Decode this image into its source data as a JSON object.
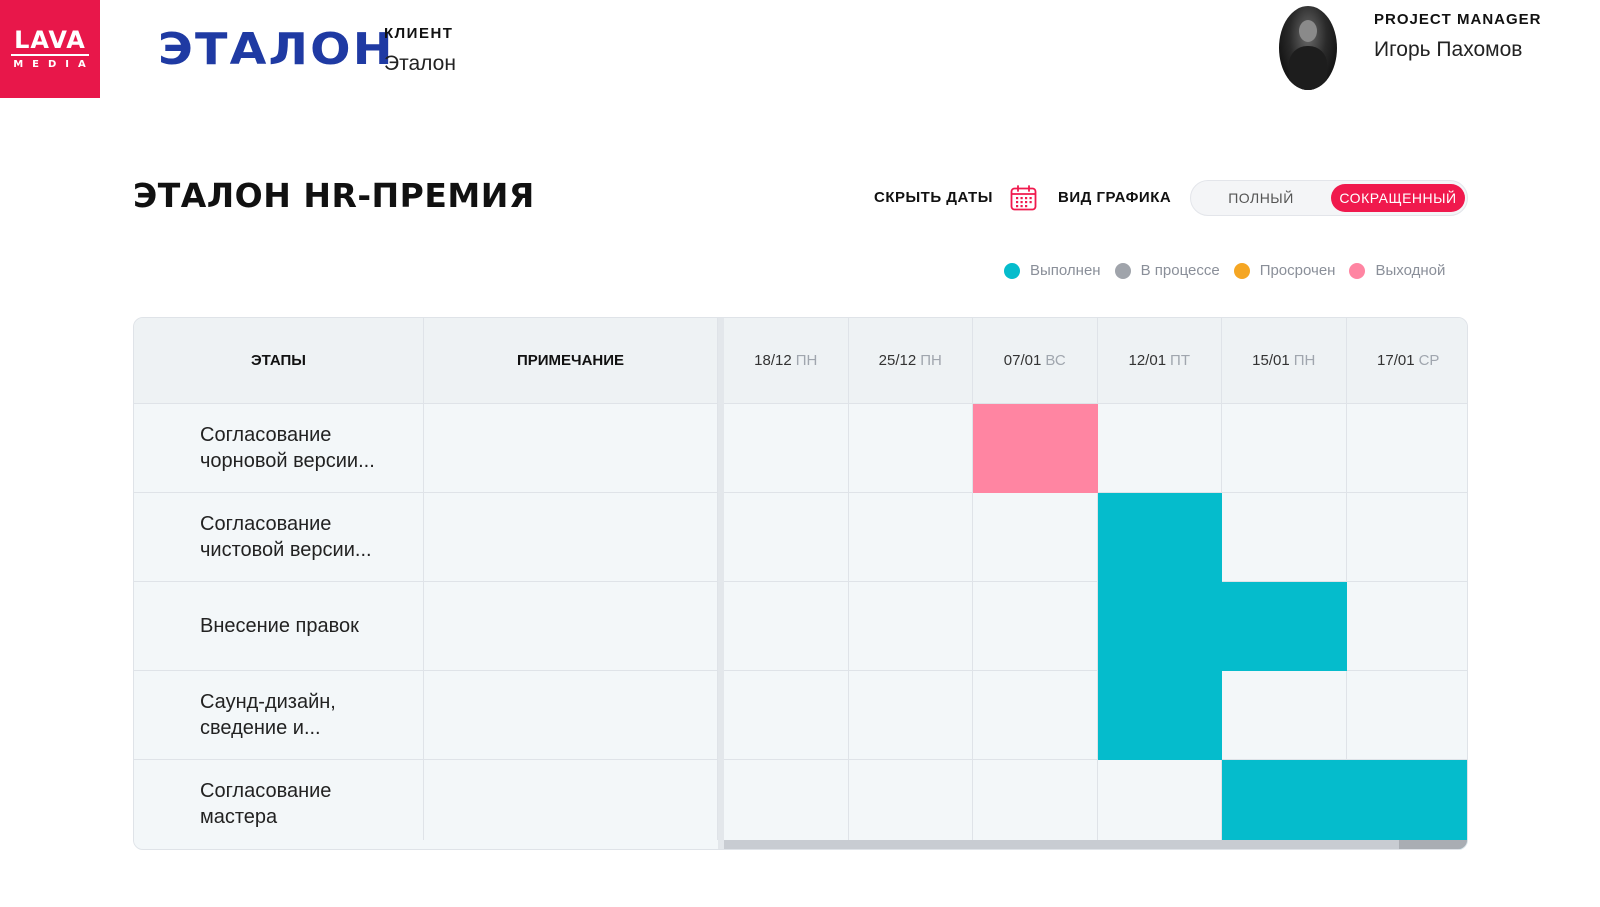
{
  "brand": {
    "line1": "LAVA",
    "line2": "MEDIA"
  },
  "client": {
    "logo_text": "ЭТАЛОН",
    "label": "КЛИЕНТ",
    "name": "Эталон"
  },
  "manager": {
    "label": "PROJECT MANAGER",
    "name": "Игорь Пахомов"
  },
  "page": {
    "title": "ЭТАЛОН HR-ПРЕМИЯ"
  },
  "controls": {
    "hide_dates": "СКРЫТЬ ДАТЫ",
    "calendar_icon": "calendar-icon",
    "view_label": "ВИД ГРАФИКА",
    "view_options": [
      "ПОЛНЫЙ",
      "СОКРАЩЕННЫЙ"
    ],
    "view_selected": "СОКРАЩЕННЫЙ"
  },
  "legend": [
    {
      "label": "Выполнен",
      "color": "#05bccc"
    },
    {
      "label": "В процессе",
      "color": "#a0a4ab"
    },
    {
      "label": "Просрочен",
      "color": "#f5a623"
    },
    {
      "label": "Выходной",
      "color": "#ff85a2"
    }
  ],
  "table": {
    "headers": {
      "stages": "ЭТАПЫ",
      "note": "ПРИМЕЧАНИЕ"
    },
    "dates": [
      {
        "date": "18/12",
        "weekday": "ПН"
      },
      {
        "date": "25/12",
        "weekday": "ПН"
      },
      {
        "date": "07/01",
        "weekday": "ВС"
      },
      {
        "date": "12/01",
        "weekday": "ПТ"
      },
      {
        "date": "15/01",
        "weekday": "ПН"
      },
      {
        "date": "17/01",
        "weekday": "СР"
      }
    ],
    "rows": [
      {
        "stage": "Согласование чорновой версии...",
        "note": "",
        "cells": [
          "",
          "",
          "holiday",
          "",
          "",
          ""
        ]
      },
      {
        "stage": "Согласование чистовой версии...",
        "note": "",
        "cells": [
          "",
          "",
          "",
          "done",
          "",
          ""
        ]
      },
      {
        "stage": "Внесение правок",
        "note": "",
        "cells": [
          "",
          "",
          "",
          "done",
          "done",
          ""
        ]
      },
      {
        "stage": "Саунд-дизайн, сведение и...",
        "note": "",
        "cells": [
          "",
          "",
          "",
          "done",
          "",
          ""
        ]
      },
      {
        "stage": "Согласование мастера",
        "note": "",
        "cells": [
          "",
          "",
          "",
          "",
          "done",
          "done"
        ]
      }
    ],
    "status_colors": {
      "done": "#05bccc",
      "holiday": "#ff85a2",
      "progress": "#a0a4ab",
      "overdue": "#f5a623"
    }
  }
}
